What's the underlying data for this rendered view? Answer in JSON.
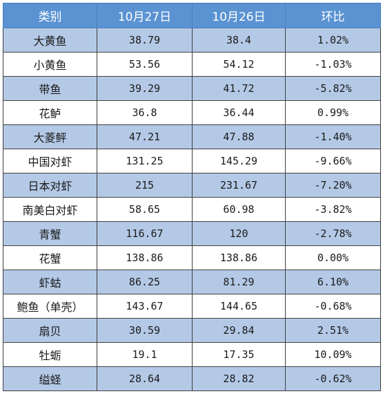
{
  "header": {
    "category": "类别",
    "date1": "10月27日",
    "date2": "10月26日",
    "change": "环比"
  },
  "rows": [
    {
      "name": "大黄鱼",
      "d27": "38.79",
      "d26": "38.4",
      "chg": "1.02%"
    },
    {
      "name": "小黄鱼",
      "d27": "53.56",
      "d26": "54.12",
      "chg": "-1.03%"
    },
    {
      "name": "带鱼",
      "d27": "39.29",
      "d26": "41.72",
      "chg": "-5.82%"
    },
    {
      "name": "花鲈",
      "d27": "36.8",
      "d26": "36.44",
      "chg": "0.99%"
    },
    {
      "name": "大菱鲆",
      "d27": "47.21",
      "d26": "47.88",
      "chg": "-1.40%"
    },
    {
      "name": "中国对虾",
      "d27": "131.25",
      "d26": "145.29",
      "chg": "-9.66%"
    },
    {
      "name": "日本对虾",
      "d27": "215",
      "d26": "231.67",
      "chg": "-7.20%"
    },
    {
      "name": "南美白对虾",
      "d27": "58.65",
      "d26": "60.98",
      "chg": "-3.82%"
    },
    {
      "name": "青蟹",
      "d27": "116.67",
      "d26": "120",
      "chg": "-2.78%"
    },
    {
      "name": "花蟹",
      "d27": "138.86",
      "d26": "138.86",
      "chg": "0.00%"
    },
    {
      "name": "虾蛄",
      "d27": "86.25",
      "d26": "81.29",
      "chg": "6.10%"
    },
    {
      "name": "鲍鱼（单壳）",
      "d27": "143.67",
      "d26": "144.65",
      "chg": "-0.68%"
    },
    {
      "name": "扇贝",
      "d27": "30.59",
      "d26": "29.84",
      "chg": "2.51%"
    },
    {
      "name": "牡蛎",
      "d27": "19.1",
      "d26": "17.35",
      "chg": "10.09%"
    },
    {
      "name": "缢蛏",
      "d27": "28.64",
      "d26": "28.82",
      "chg": "-0.62%"
    }
  ]
}
